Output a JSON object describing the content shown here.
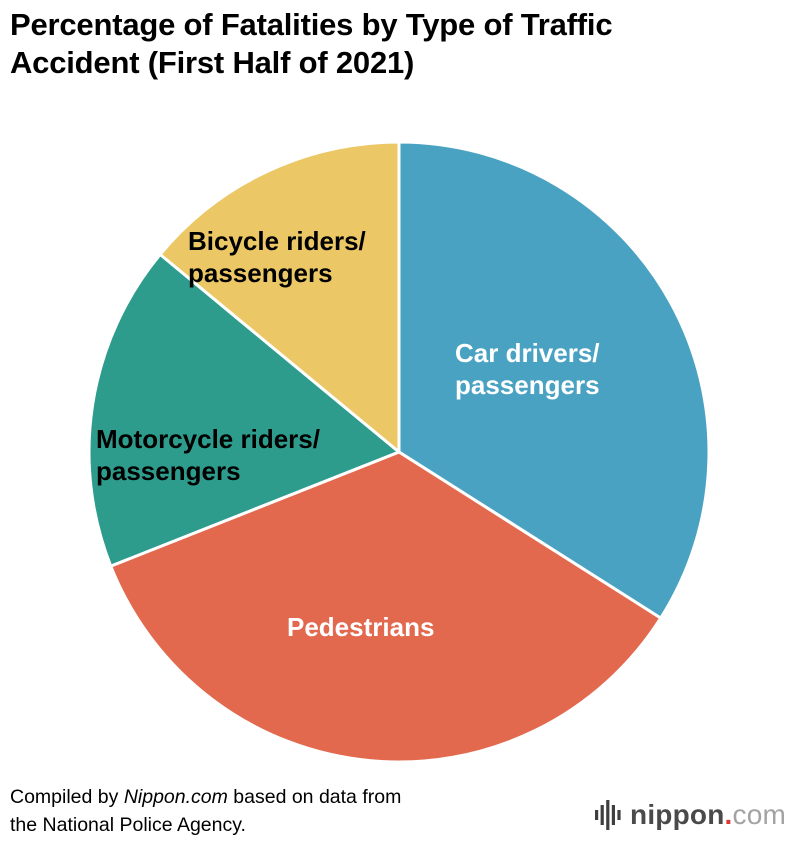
{
  "title": {
    "line1": "Percentage of Fatalities by Type of Traffic",
    "line2": "Accident (First Half of 2021)"
  },
  "chart_data": {
    "type": "pie",
    "title": "Percentage of Fatalities by Type of Traffic Accident (First Half of 2021)",
    "start_angle_deg": 0,
    "direction": "clockwise",
    "values_shown_on_chart": false,
    "values_pct_estimated": true,
    "slices": [
      {
        "id": "car",
        "label": "Car drivers/passengers",
        "value": 34,
        "color": "#4AA2C2",
        "text_color": "#ffffff"
      },
      {
        "id": "pedestrians",
        "label": "Pedestrians",
        "value": 35,
        "color": "#E2694E",
        "text_color": "#ffffff"
      },
      {
        "id": "motorcycle",
        "label": "Motorcycle riders/passengers",
        "value": 17,
        "color": "#2E9C8C",
        "text_color": "#000000"
      },
      {
        "id": "bicycle",
        "label": "Bicycle riders/passengers",
        "value": 14,
        "color": "#EBC766",
        "text_color": "#000000"
      }
    ]
  },
  "labels": {
    "bicycle": {
      "line1": "Bicycle riders/",
      "line2": "passengers"
    },
    "car": {
      "line1": "Car drivers/",
      "line2": "passengers"
    },
    "motorcycle": {
      "line1": "Motorcycle riders/",
      "line2": "passengers"
    },
    "pedestrians": {
      "line1": "Pedestrians"
    }
  },
  "footer": {
    "part1": "Compiled by ",
    "source_name": "Nippon.com",
    "part2": " based on data from",
    "line2": "the National Police Agency."
  },
  "logo": {
    "mark_icon": "equalizer-bars-icon",
    "name": "nippon",
    "dot": ".",
    "tld": "com"
  }
}
